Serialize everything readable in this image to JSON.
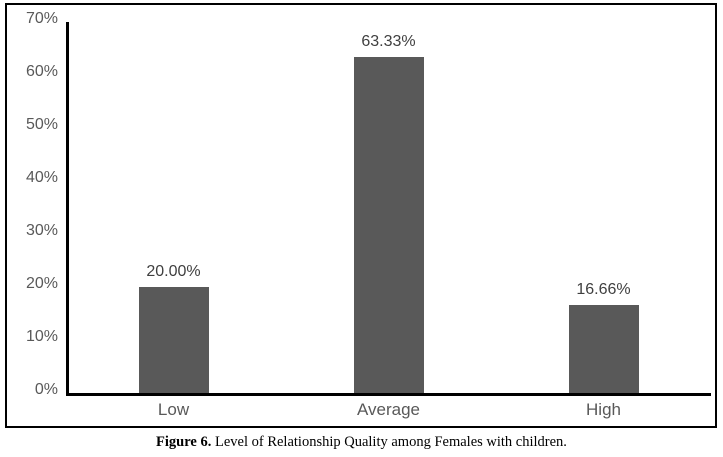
{
  "chart_data": {
    "type": "bar",
    "title": "",
    "xlabel": "",
    "ylabel": "",
    "categories": [
      "Low",
      "Average",
      "High"
    ],
    "values": [
      20.0,
      63.33,
      16.66
    ],
    "value_labels": [
      "20.00%",
      "63.33%",
      "16.66%"
    ],
    "y_ticks": [
      "0%",
      "10%",
      "20%",
      "30%",
      "40%",
      "50%",
      "60%",
      "70%"
    ],
    "y_tick_values": [
      0,
      10,
      20,
      30,
      40,
      50,
      60,
      70
    ],
    "ylim": [
      0,
      70
    ],
    "grid": "off",
    "legend": "none",
    "bar_color": "#595959",
    "axis_color": "#000000",
    "tick_label_color": "#595959",
    "data_label_color": "#3f3f3f"
  },
  "caption": {
    "figure_label": "Figure 6.",
    "text": " Level of Relationship Quality among Females with children."
  }
}
